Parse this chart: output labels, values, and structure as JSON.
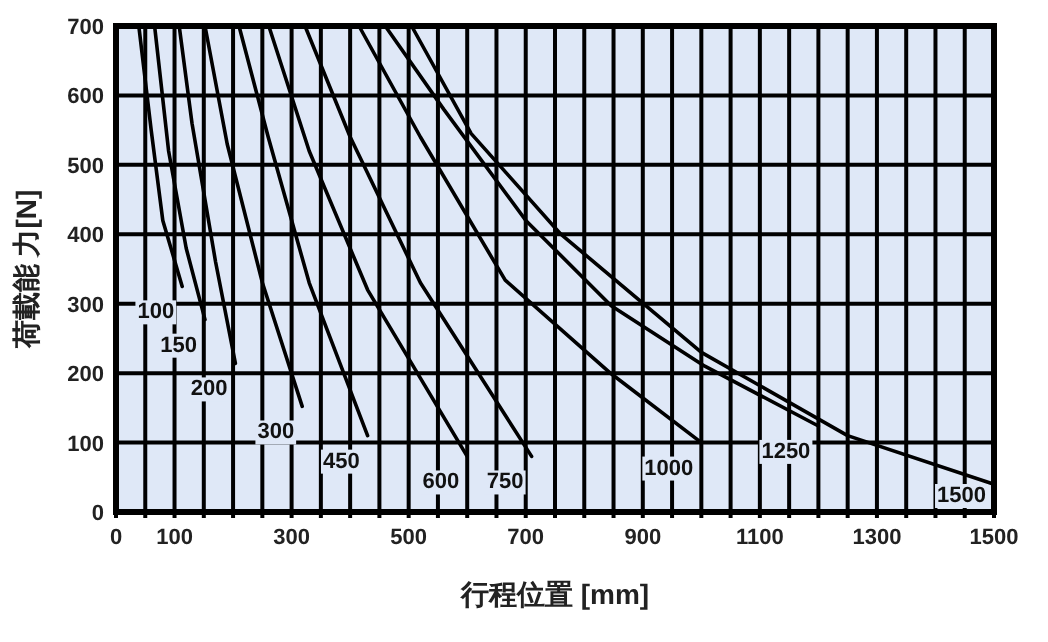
{
  "chart_data": {
    "type": "line",
    "xlabel": "行程位置  [mm]",
    "ylabel": "荷載能 力[N]",
    "xlim": [
      0,
      1500
    ],
    "ylim": [
      0,
      700
    ],
    "xticks": [
      0,
      {
        "value": 50,
        "label": null
      },
      100,
      {
        "value": 150,
        "label": null
      },
      {
        "value": 200,
        "label": null
      },
      {
        "value": 250,
        "label": null
      },
      300,
      {
        "value": 350,
        "label": null
      },
      {
        "value": 400,
        "label": null
      },
      {
        "value": 450,
        "label": null
      },
      500,
      {
        "value": 550,
        "label": null
      },
      {
        "value": 600,
        "label": null
      },
      {
        "value": 650,
        "label": null
      },
      700,
      {
        "value": 750,
        "label": null
      },
      {
        "value": 800,
        "label": null
      },
      {
        "value": 850,
        "label": null
      },
      900,
      {
        "value": 950,
        "label": null
      },
      {
        "value": 1000,
        "label": null
      },
      {
        "value": 1050,
        "label": null
      },
      1100,
      {
        "value": 1150,
        "label": null
      },
      {
        "value": 1200,
        "label": null
      },
      {
        "value": 1250,
        "label": null
      },
      1300,
      {
        "value": 1350,
        "label": null
      },
      {
        "value": 1400,
        "label": null
      },
      {
        "value": 1450,
        "label": null
      },
      1500
    ],
    "yticks": [
      0,
      100,
      200,
      300,
      400,
      500,
      600,
      700
    ],
    "grid": true,
    "series": [
      {
        "name": "100",
        "color": "#000000",
        "x": [
          39,
          60,
          80,
          113
        ],
        "values": [
          700,
          550,
          420,
          325
        ]
      },
      {
        "name": "150",
        "color": "#000000",
        "x": [
          66,
          90,
          120,
          152
        ],
        "values": [
          700,
          520,
          380,
          277
        ]
      },
      {
        "name": "200",
        "color": "#000000",
        "x": [
          108,
          130,
          170,
          204
        ],
        "values": [
          700,
          560,
          360,
          214
        ]
      },
      {
        "name": "300",
        "color": "#000000",
        "x": [
          152,
          190,
          250,
          318
        ],
        "values": [
          700,
          530,
          330,
          152
        ]
      },
      {
        "name": "450",
        "color": "#000000",
        "x": [
          210,
          260,
          330,
          430
        ],
        "values": [
          700,
          540,
          330,
          110
        ]
      },
      {
        "name": "600",
        "color": "#000000",
        "x": [
          261,
          330,
          430,
          600
        ],
        "values": [
          700,
          520,
          320,
          80
        ]
      },
      {
        "name": "750",
        "color": "#000000",
        "x": [
          323,
          400,
          520,
          710
        ],
        "values": [
          700,
          540,
          330,
          80
        ]
      },
      {
        "name": "1000",
        "color": "#000000",
        "x": [
          415,
          520,
          665,
          846,
          1000
        ],
        "values": [
          700,
          540,
          334,
          199,
          100
        ]
      },
      {
        "name": "1250",
        "color": "#000000",
        "x": [
          460,
          560,
          700,
          846,
          1006,
          1200
        ],
        "values": [
          700,
          580,
          420,
          297,
          210,
          124
        ]
      },
      {
        "name": "1500",
        "color": "#000000",
        "x": [
          505,
          607,
          760,
          1000,
          1250,
          1500
        ],
        "values": [
          700,
          545,
          400,
          230,
          110,
          40
        ]
      }
    ]
  }
}
